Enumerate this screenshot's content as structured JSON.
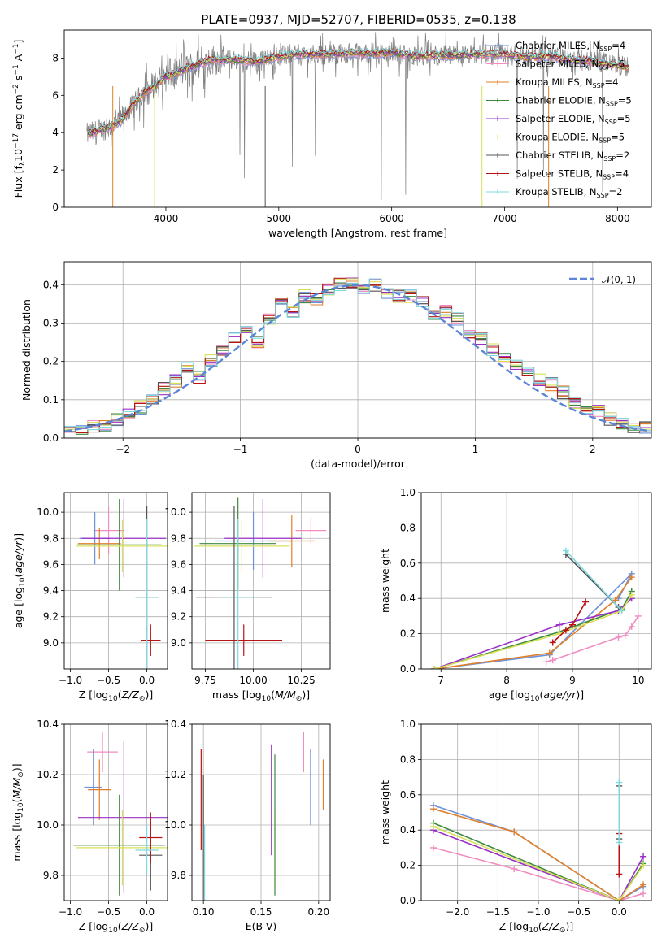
{
  "page_title": "PLATE=0937, MJD=52707, FIBERID=0535, z=0.138",
  "colors": {
    "chabrier_miles": "#6e92d8",
    "salpeter_miles": "#f08cc0",
    "kroupa_miles": "#e07f2a",
    "chabrier_elodie": "#3d8a3d",
    "salpeter_elodie": "#9b30c8",
    "kroupa_elodie": "#d8e05a",
    "chabrier_stelib": "#555555",
    "salpeter_stelib": "#b81414",
    "kroupa_stelib": "#7fd9dd",
    "normal": "#5b86d6",
    "grid": "#b0b0b0"
  },
  "chart_data": [
    {
      "id": "spectrum",
      "type": "line",
      "title": "PLATE=0937, MJD=52707, FIBERID=0535, z=0.138",
      "xlabel": "wavelength [Angstrom, rest frame]",
      "ylabel": "Flux [f_λ 10^-17 erg cm^-2 s^-1 A^-1]",
      "xlim": [
        3100,
        8300
      ],
      "ylim": [
        0,
        9.5
      ],
      "xticks": [
        "4000",
        "5000",
        "6000",
        "7000",
        "8000"
      ],
      "yticks": [
        "0",
        "2",
        "4",
        "6",
        "8"
      ],
      "grid": false,
      "legend_position": "right",
      "legend": [
        {
          "name": "Chabrier MILES, N_SSP=4",
          "color_key": "chabrier_miles"
        },
        {
          "name": "Salpeter MILES, N_SSP=6",
          "color_key": "salpeter_miles"
        },
        {
          "name": "Kroupa MILES, N_SSP=4",
          "color_key": "kroupa_miles"
        },
        {
          "name": "Chabrier ELODIE, N_SSP=5",
          "color_key": "chabrier_elodie"
        },
        {
          "name": "Salpeter ELODIE, N_SSP=5",
          "color_key": "salpeter_elodie"
        },
        {
          "name": "Kroupa ELODIE, N_SSP=5",
          "color_key": "kroupa_elodie"
        },
        {
          "name": "Chabrier STELIB, N_SSP=2",
          "color_key": "chabrier_stelib"
        },
        {
          "name": "Salpeter STELIB, N_SSP=4",
          "color_key": "salpeter_stelib"
        },
        {
          "name": "Kroupa STELIB, N_SSP=2",
          "color_key": "kroupa_stelib"
        }
      ],
      "data_range": [
        3300,
        8100
      ],
      "continuum": {
        "x": [
          3300,
          3400,
          3500,
          3600,
          3700,
          3800,
          3900,
          4000,
          4100,
          4200,
          4300,
          4400,
          4600,
          4800,
          5000,
          5200,
          5400,
          5600,
          5800,
          6000,
          6200,
          6400,
          6600,
          6800,
          7000,
          7200,
          7400,
          7600,
          7800,
          8000,
          8100
        ],
        "y": [
          3.9,
          4.1,
          4.3,
          4.6,
          5.4,
          6.1,
          6.5,
          7.0,
          7.2,
          7.5,
          7.7,
          7.9,
          7.9,
          7.8,
          8.1,
          8.2,
          8.2,
          8.25,
          8.25,
          8.3,
          8.1,
          8.15,
          8.15,
          8.2,
          8.2,
          8.05,
          8.1,
          7.9,
          7.8,
          7.6,
          7.5
        ]
      }
    },
    {
      "id": "residuals",
      "type": "line",
      "xlabel": "(data-model)/error",
      "ylabel": "Normed distribution",
      "xlim": [
        -2.5,
        2.5
      ],
      "ylim": [
        0,
        0.46
      ],
      "xticks": [
        "−2",
        "−1",
        "0",
        "1",
        "2"
      ],
      "yticks": [
        "0.0",
        "0.1",
        "0.2",
        "0.3",
        "0.4"
      ],
      "grid": true,
      "legend_position": "top-right",
      "legend": [
        {
          "name": "𝒩(0, 1)",
          "color_key": "normal"
        }
      ],
      "bin_width": 0.1,
      "histogram_centers": [
        -2.45,
        -2.35,
        -2.25,
        -2.15,
        -2.05,
        -1.95,
        -1.85,
        -1.75,
        -1.65,
        -1.55,
        -1.45,
        -1.35,
        -1.25,
        -1.15,
        -1.05,
        -0.95,
        -0.85,
        -0.75,
        -0.65,
        -0.55,
        -0.45,
        -0.35,
        -0.25,
        -0.15,
        -0.05,
        0.05,
        0.15,
        0.25,
        0.35,
        0.45,
        0.55,
        0.65,
        0.75,
        0.85,
        0.95,
        1.05,
        1.15,
        1.25,
        1.35,
        1.45,
        1.55,
        1.65,
        1.75,
        1.85,
        1.95,
        2.05,
        2.15,
        2.25,
        2.35,
        2.45
      ],
      "histogram_values": [
        0.02,
        0.02,
        0.03,
        0.03,
        0.05,
        0.06,
        0.08,
        0.1,
        0.13,
        0.15,
        0.18,
        0.16,
        0.2,
        0.23,
        0.26,
        0.28,
        0.25,
        0.31,
        0.36,
        0.33,
        0.37,
        0.36,
        0.39,
        0.4,
        0.4,
        0.38,
        0.4,
        0.38,
        0.37,
        0.37,
        0.36,
        0.32,
        0.33,
        0.31,
        0.27,
        0.26,
        0.23,
        0.21,
        0.19,
        0.17,
        0.15,
        0.14,
        0.12,
        0.09,
        0.07,
        0.07,
        0.05,
        0.04,
        0.03,
        0.03
      ]
    },
    {
      "id": "age_vs_Z",
      "type": "scatter",
      "xlabel": "Z [log10(Z/Z⊙)]",
      "ylabel": "age [log10(age/yr)]",
      "xlim": [
        -1.08,
        0.27
      ],
      "ylim": [
        8.8,
        10.15
      ],
      "xticks": [
        "−1.0",
        "−0.5",
        "0.0"
      ],
      "yticks": [
        "9.0",
        "9.2",
        "9.4",
        "9.6",
        "9.8",
        "10.0"
      ],
      "grid": true,
      "points": [
        {
          "x": -0.5,
          "y": 9.86,
          "xerr": 0.2,
          "yerr": 0.18,
          "color_key": "salpeter_miles"
        },
        {
          "x": -0.68,
          "y": 9.8,
          "xerr": 0.2,
          "yerr": 0.2,
          "color_key": "chabrier_miles"
        },
        {
          "x": -0.62,
          "y": 9.76,
          "xerr": 0.28,
          "yerr": 0.12,
          "color_key": "kroupa_miles"
        },
        {
          "x": -0.36,
          "y": 9.75,
          "xerr": 0.55,
          "yerr": 0.35,
          "color_key": "chabrier_elodie"
        },
        {
          "x": -0.3,
          "y": 9.8,
          "xerr": 0.55,
          "yerr": 0.3,
          "color_key": "salpeter_elodie"
        },
        {
          "x": -0.32,
          "y": 9.74,
          "xerr": 0.6,
          "yerr": 0.2,
          "color_key": "kroupa_elodie"
        },
        {
          "x": 0.0,
          "y": 9.35,
          "xerr": 0.15,
          "yerr": 0.7,
          "color_key": "chabrier_stelib"
        },
        {
          "x": 0.05,
          "y": 9.02,
          "xerr": 0.13,
          "yerr": 0.12,
          "color_key": "salpeter_stelib"
        },
        {
          "x": 0.0,
          "y": 9.35,
          "xerr": 0.15,
          "yerr": 0.6,
          "color_key": "kroupa_stelib"
        }
      ]
    },
    {
      "id": "age_vs_mass",
      "type": "scatter",
      "xlabel": "mass [log10(M/M⊙)]",
      "ylabel": "",
      "xlim": [
        9.68,
        10.4
      ],
      "ylim": [
        8.8,
        10.15
      ],
      "xticks": [
        "9.75",
        "10.00",
        "10.25"
      ],
      "yticks": [
        "9.0",
        "9.2",
        "9.4",
        "9.6",
        "9.8",
        "10.0"
      ],
      "grid": true,
      "points": [
        {
          "x": 10.3,
          "y": 9.86,
          "xerr": 0.08,
          "yerr": 0.1,
          "color_key": "salpeter_miles"
        },
        {
          "x": 10.0,
          "y": 9.78,
          "xerr": 0.2,
          "yerr": 0.22,
          "color_key": "chabrier_miles"
        },
        {
          "x": 10.2,
          "y": 9.78,
          "xerr": 0.12,
          "yerr": 0.2,
          "color_key": "kroupa_miles"
        },
        {
          "x": 9.92,
          "y": 9.76,
          "xerr": 0.2,
          "yerr": 0.35,
          "color_key": "chabrier_elodie"
        },
        {
          "x": 10.05,
          "y": 9.8,
          "xerr": 0.2,
          "yerr": 0.3,
          "color_key": "salpeter_elodie"
        },
        {
          "x": 9.94,
          "y": 9.74,
          "xerr": 0.25,
          "yerr": 0.2,
          "color_key": "kroupa_elodie"
        },
        {
          "x": 9.9,
          "y": 9.35,
          "xerr": 0.2,
          "yerr": 0.7,
          "color_key": "chabrier_stelib"
        },
        {
          "x": 9.95,
          "y": 9.02,
          "xerr": 0.2,
          "yerr": 0.12,
          "color_key": "salpeter_stelib"
        },
        {
          "x": 9.92,
          "y": 9.35,
          "xerr": 0.1,
          "yerr": 0.6,
          "color_key": "kroupa_stelib"
        }
      ]
    },
    {
      "id": "weight_vs_age",
      "type": "line",
      "xlabel": "age [log10(age/yr)]",
      "ylabel": "mass weight",
      "xlim": [
        6.7,
        10.2
      ],
      "ylim": [
        0.0,
        1.0
      ],
      "xticks": [
        "7",
        "8",
        "9",
        "10"
      ],
      "yticks": [
        "0.0",
        "0.2",
        "0.4",
        "0.6",
        "0.8",
        "1.0"
      ],
      "grid": true,
      "series": [
        {
          "color_key": "chabrier_miles",
          "x": [
            6.9,
            8.65,
            9.9,
            9.7
          ],
          "y": [
            0.0,
            0.08,
            0.54,
            0.4
          ]
        },
        {
          "color_key": "salpeter_miles",
          "x": [
            8.6,
            8.7,
            9.7,
            9.8,
            9.9,
            10.0
          ],
          "y": [
            0.04,
            0.05,
            0.18,
            0.19,
            0.24,
            0.3
          ]
        },
        {
          "color_key": "kroupa_miles",
          "x": [
            6.9,
            8.65,
            9.65,
            9.9
          ],
          "y": [
            0.0,
            0.09,
            0.39,
            0.52
          ]
        },
        {
          "color_key": "chabrier_elodie",
          "x": [
            6.9,
            8.8,
            9.75,
            9.9
          ],
          "y": [
            0.0,
            0.21,
            0.34,
            0.44
          ]
        },
        {
          "color_key": "salpeter_elodie",
          "x": [
            6.9,
            8.8,
            9.7,
            9.9
          ],
          "y": [
            0.0,
            0.25,
            0.33,
            0.4
          ]
        },
        {
          "color_key": "kroupa_elodie",
          "x": [
            6.9,
            8.8,
            9.75,
            9.9
          ],
          "y": [
            0.0,
            0.2,
            0.33,
            0.42
          ]
        },
        {
          "color_key": "chabrier_stelib",
          "x": [
            8.9,
            9.7
          ],
          "y": [
            0.65,
            0.35
          ]
        },
        {
          "color_key": "salpeter_stelib",
          "x": [
            8.7,
            8.9,
            9.0,
            9.2
          ],
          "y": [
            0.15,
            0.22,
            0.25,
            0.38
          ]
        },
        {
          "color_key": "kroupa_stelib",
          "x": [
            8.9,
            9.75
          ],
          "y": [
            0.67,
            0.33
          ]
        }
      ]
    },
    {
      "id": "mass_vs_Z",
      "type": "scatter",
      "xlabel": "Z [log10(Z/Z⊙)]",
      "ylabel": "mass [log10(M/M⊙)]",
      "xlim": [
        -1.08,
        0.27
      ],
      "ylim": [
        9.7,
        10.4
      ],
      "xticks": [
        "−1.0",
        "−0.5",
        "0.0"
      ],
      "yticks": [
        "9.8",
        "10.0",
        "10.2",
        "10.4"
      ],
      "grid": true,
      "points": [
        {
          "x": -0.58,
          "y": 10.29,
          "xerr": 0.2,
          "yerr": 0.08,
          "color_key": "salpeter_miles"
        },
        {
          "x": -0.7,
          "y": 10.15,
          "xerr": 0.12,
          "yerr": 0.15,
          "color_key": "chabrier_miles"
        },
        {
          "x": -0.62,
          "y": 10.14,
          "xerr": 0.15,
          "yerr": 0.12,
          "color_key": "kroupa_miles"
        },
        {
          "x": -0.36,
          "y": 9.92,
          "xerr": 0.6,
          "yerr": 0.2,
          "color_key": "chabrier_elodie"
        },
        {
          "x": -0.3,
          "y": 10.03,
          "xerr": 0.6,
          "yerr": 0.3,
          "color_key": "salpeter_elodie"
        },
        {
          "x": -0.32,
          "y": 9.91,
          "xerr": 0.6,
          "yerr": 0.15,
          "color_key": "kroupa_elodie"
        },
        {
          "x": 0.05,
          "y": 9.88,
          "xerr": 0.15,
          "yerr": 0.14,
          "color_key": "chabrier_stelib"
        },
        {
          "x": 0.05,
          "y": 9.95,
          "xerr": 0.15,
          "yerr": 0.1,
          "color_key": "salpeter_stelib"
        },
        {
          "x": 0.0,
          "y": 9.9,
          "xerr": 0.15,
          "yerr": 0.1,
          "color_key": "kroupa_stelib"
        }
      ]
    },
    {
      "id": "mass_vs_ebv",
      "type": "scatter",
      "xlabel": "E(B-V)",
      "ylabel": "",
      "xlim": [
        0.09,
        0.21
      ],
      "ylim": [
        9.7,
        10.4
      ],
      "xticks": [
        "0.10",
        "0.15",
        "0.20"
      ],
      "yticks": [
        "9.8",
        "10.0",
        "10.2",
        "10.4"
      ],
      "grid": true,
      "points": [
        {
          "x": 0.187,
          "y": 10.29,
          "yerr": 0.08,
          "color_key": "salpeter_miles"
        },
        {
          "x": 0.193,
          "y": 10.15,
          "yerr": 0.15,
          "color_key": "chabrier_miles"
        },
        {
          "x": 0.204,
          "y": 10.16,
          "yerr": 0.1,
          "color_key": "kroupa_miles"
        },
        {
          "x": 0.162,
          "y": 10.0,
          "yerr": 0.28,
          "color_key": "chabrier_elodie"
        },
        {
          "x": 0.159,
          "y": 10.1,
          "yerr": 0.22,
          "color_key": "salpeter_elodie"
        },
        {
          "x": 0.163,
          "y": 9.9,
          "yerr": 0.15,
          "color_key": "kroupa_elodie"
        },
        {
          "x": 0.1,
          "y": 9.95,
          "yerr": 0.25,
          "color_key": "chabrier_stelib"
        },
        {
          "x": 0.098,
          "y": 10.1,
          "yerr": 0.2,
          "color_key": "salpeter_stelib"
        },
        {
          "x": 0.101,
          "y": 9.85,
          "yerr": 0.15,
          "color_key": "kroupa_stelib"
        }
      ]
    },
    {
      "id": "weight_vs_Z",
      "type": "line",
      "xlabel": "Z [log10(Z/Z⊙)]",
      "ylabel": "mass weight",
      "xlim": [
        -2.45,
        0.4
      ],
      "ylim": [
        0.0,
        1.0
      ],
      "xticks": [
        "−2.0",
        "−1.5",
        "−1.0",
        "−0.5",
        "0.0"
      ],
      "yticks": [
        "0.0",
        "0.2",
        "0.4",
        "0.6",
        "0.8",
        "1.0"
      ],
      "grid": true,
      "series": [
        {
          "color_key": "chabrier_miles",
          "x": [
            -2.3,
            -1.3,
            0.0,
            0.3
          ],
          "y": [
            0.54,
            0.39,
            0.0,
            0.08
          ]
        },
        {
          "color_key": "salpeter_miles",
          "x": [
            -2.3,
            -1.3,
            0.0,
            0.3
          ],
          "y": [
            0.3,
            0.18,
            0.0,
            0.04
          ]
        },
        {
          "color_key": "kroupa_miles",
          "x": [
            -2.3,
            -1.3,
            0.0,
            0.3
          ],
          "y": [
            0.52,
            0.39,
            0.0,
            0.09
          ]
        },
        {
          "color_key": "chabrier_elodie",
          "x": [
            -2.3,
            0.0,
            0.3
          ],
          "y": [
            0.44,
            0.0,
            0.21
          ]
        },
        {
          "color_key": "salpeter_elodie",
          "x": [
            -2.3,
            0.0,
            0.3
          ],
          "y": [
            0.4,
            0.0,
            0.25
          ]
        },
        {
          "color_key": "kroupa_elodie",
          "x": [
            -2.3,
            0.0,
            0.3
          ],
          "y": [
            0.42,
            0.0,
            0.2
          ]
        },
        {
          "color_key": "chabrier_stelib",
          "x": [
            0.0,
            0.0
          ],
          "y": [
            0.65,
            0.35
          ]
        },
        {
          "color_key": "salpeter_stelib",
          "x": [
            0.0,
            0.0
          ],
          "y": [
            0.38,
            0.15
          ]
        },
        {
          "color_key": "kroupa_stelib",
          "x": [
            0.0,
            0.0
          ],
          "y": [
            0.67,
            0.33
          ]
        }
      ]
    }
  ]
}
